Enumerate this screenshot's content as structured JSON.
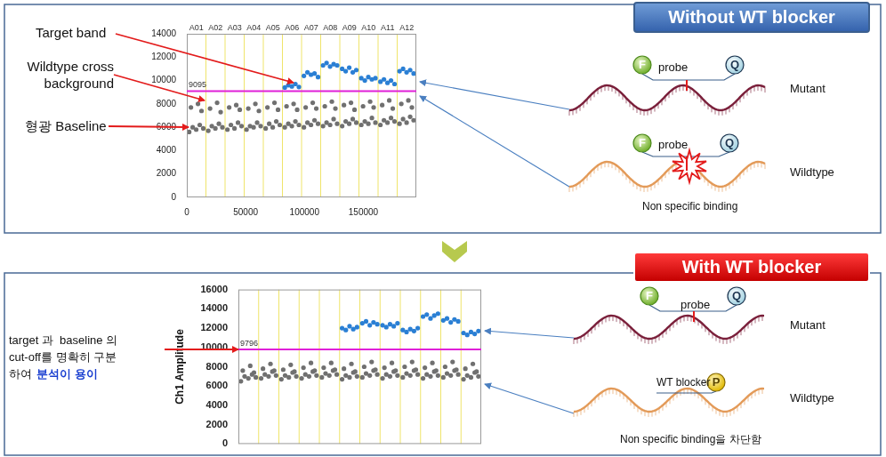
{
  "chart_data": [
    {
      "type": "scatter",
      "xlim": [
        0,
        195000
      ],
      "xticks": [
        0,
        50000,
        100000,
        150000
      ],
      "ylim": [
        0,
        14000
      ],
      "yticks": [
        0,
        2000,
        4000,
        6000,
        8000,
        10000,
        12000,
        14000
      ],
      "threshold": 9095,
      "well_labels": [
        "A01",
        "A02",
        "A03",
        "A04",
        "A05",
        "A06",
        "A07",
        "A08",
        "A09",
        "A10",
        "A11",
        "A12"
      ],
      "well_boundaries": [
        0,
        16250,
        32500,
        48750,
        65000,
        81250,
        97500,
        113750,
        130000,
        146250,
        162500,
        178750,
        195000
      ],
      "series": [
        {
          "color": "#707070",
          "x": [
            2000,
            5000,
            8000,
            11000,
            14000,
            3500,
            9500,
            12500,
            18250,
            21250,
            24250,
            27250,
            30250,
            19750,
            25750,
            28750,
            34500,
            37500,
            40500,
            43500,
            46500,
            36000,
            42000,
            45000,
            50750,
            53750,
            56750,
            59750,
            62750,
            52250,
            58250,
            61250,
            67000,
            70000,
            73000,
            76000,
            79000,
            68500,
            74500,
            77500,
            83250,
            86250,
            89250,
            92250,
            95250,
            84750,
            90750,
            93750,
            99500,
            102500,
            105500,
            108500,
            111500,
            101000,
            107000,
            110000,
            115750,
            118750,
            121750,
            124750,
            127750,
            117250,
            123250,
            126250,
            132000,
            135000,
            138000,
            141000,
            144000,
            133500,
            139500,
            142500,
            148250,
            151250,
            154250,
            157250,
            160250,
            149750,
            155750,
            158750,
            164500,
            167500,
            170500,
            173500,
            176500,
            166000,
            172000,
            175000,
            180750,
            183750,
            186750,
            189750,
            192750,
            182250,
            188250,
            191250
          ],
          "values": [
            5600,
            6000,
            5800,
            6200,
            5900,
            7700,
            8000,
            7400,
            5700,
            6100,
            5900,
            6300,
            6000,
            7600,
            8100,
            7300,
            5800,
            6200,
            5900,
            6400,
            6100,
            7700,
            7900,
            7500,
            5800,
            6100,
            6000,
            6400,
            6100,
            7600,
            8000,
            7400,
            5900,
            6300,
            6000,
            6500,
            6200,
            7700,
            8100,
            7500,
            6000,
            6300,
            6100,
            6500,
            6200,
            7800,
            8000,
            7500,
            6000,
            6400,
            6200,
            6600,
            6300,
            7700,
            8100,
            7600,
            6100,
            6400,
            6200,
            6700,
            6300,
            7800,
            8200,
            7600,
            6100,
            6500,
            6300,
            6700,
            6400,
            7900,
            8100,
            7500,
            6200,
            6500,
            6300,
            6800,
            6400,
            7800,
            8200,
            7700,
            6200,
            6600,
            6400,
            6800,
            6500,
            7900,
            8300,
            7600,
            6300,
            6700,
            6400,
            6900,
            6600,
            8000,
            8300,
            7700
          ]
        },
        {
          "color": "#2a7fd4",
          "x": [
            83250,
            86250,
            89250,
            92250,
            95250,
            99500,
            102500,
            105500,
            108500,
            111500,
            115750,
            118750,
            121750,
            124750,
            127750,
            132000,
            135000,
            138000,
            141000,
            144000,
            148250,
            151250,
            154250,
            157250,
            160250,
            164500,
            167500,
            170500,
            173500,
            176500,
            180750,
            183750,
            186750,
            189750,
            192750
          ],
          "values": [
            9400,
            9600,
            9500,
            9700,
            9450,
            10400,
            10700,
            10500,
            10600,
            10300,
            11300,
            11500,
            11200,
            11400,
            11300,
            11000,
            10800,
            11100,
            10700,
            10900,
            10200,
            10000,
            10300,
            10100,
            10200,
            9900,
            10100,
            9800,
            10000,
            9700,
            10800,
            11000,
            10700,
            10900,
            10600
          ]
        }
      ]
    },
    {
      "type": "scatter",
      "ylabel": "Ch1 Amplitude",
      "tick_labels": "y",
      "xlim": [
        0,
        195000
      ],
      "ylim": [
        0,
        16000
      ],
      "yticks": [
        0,
        2000,
        4000,
        6000,
        8000,
        10000,
        12000,
        14000,
        16000
      ],
      "threshold": 9796,
      "well_boundaries": [
        0,
        16250,
        32500,
        48750,
        65000,
        81250,
        97500,
        113750,
        130000,
        146250,
        162500,
        178750,
        195000
      ],
      "series": [
        {
          "color": "#707070",
          "x": [
            2000,
            5000,
            8000,
            11000,
            14000,
            3500,
            9500,
            12500,
            18250,
            21250,
            24250,
            27250,
            30250,
            19750,
            25750,
            28750,
            34500,
            37500,
            40500,
            43500,
            46500,
            36000,
            42000,
            45000,
            50750,
            53750,
            56750,
            59750,
            62750,
            52250,
            58250,
            61250,
            67000,
            70000,
            73000,
            76000,
            79000,
            68500,
            74500,
            77500,
            83250,
            86250,
            89250,
            92250,
            95250,
            84750,
            90750,
            93750,
            99500,
            102500,
            105500,
            108500,
            111500,
            101000,
            107000,
            110000,
            115750,
            118750,
            121750,
            124750,
            127750,
            117250,
            123250,
            126250,
            132000,
            135000,
            138000,
            141000,
            144000,
            133500,
            139500,
            142500,
            148250,
            151250,
            154250,
            157250,
            160250,
            149750,
            155750,
            158750,
            164500,
            167500,
            170500,
            173500,
            176500,
            166000,
            172000,
            175000,
            180750,
            183750,
            186750,
            189750,
            192750,
            182250,
            188250,
            191250
          ],
          "values": [
            6500,
            7000,
            6800,
            7200,
            6900,
            7600,
            8100,
            7400,
            6800,
            7200,
            7000,
            7500,
            7100,
            7800,
            8300,
            7600,
            6700,
            7100,
            6900,
            7400,
            7000,
            7700,
            8200,
            7500,
            6800,
            7200,
            7000,
            7500,
            7100,
            7900,
            8400,
            7600,
            6900,
            7300,
            7100,
            7600,
            7200,
            7900,
            8400,
            7700,
            6700,
            7100,
            6900,
            7400,
            7000,
            7800,
            8300,
            7500,
            6900,
            7300,
            7100,
            7600,
            7200,
            8000,
            8500,
            7700,
            6800,
            7200,
            7000,
            7500,
            7100,
            7900,
            8400,
            7600,
            6900,
            7300,
            7100,
            7600,
            7200,
            8000,
            8500,
            7700,
            6800,
            7200,
            7000,
            7500,
            7100,
            7900,
            8400,
            7600,
            6900,
            7300,
            7100,
            7600,
            7200,
            8000,
            8500,
            7700,
            6700,
            7100,
            6900,
            7400,
            7000,
            7800,
            8300,
            7500
          ]
        },
        {
          "color": "#2a7fd4",
          "x": [
            83250,
            86250,
            89250,
            92250,
            95250,
            99500,
            102500,
            105500,
            108500,
            111500,
            115750,
            118750,
            121750,
            124750,
            127750,
            132000,
            135000,
            138000,
            141000,
            144000,
            148250,
            151250,
            154250,
            157250,
            160250,
            164500,
            167500,
            170500,
            173500,
            176500,
            180750,
            183750,
            186750,
            189750,
            192750
          ],
          "values": [
            12000,
            11800,
            12200,
            11900,
            12100,
            12500,
            12700,
            12300,
            12600,
            12400,
            12300,
            12100,
            12400,
            12200,
            12500,
            11800,
            11600,
            11900,
            11700,
            12000,
            13200,
            13400,
            13000,
            13300,
            13500,
            12800,
            13000,
            12600,
            12900,
            12700,
            11500,
            11300,
            11600,
            11400,
            11700
          ]
        }
      ]
    }
  ],
  "figure": {
    "panels": [
      {
        "header": "Without WT blocker",
        "notes": [
          "Target band",
          "Wildtype cross\nbackground",
          "형광 Baseline"
        ],
        "mutant": {
          "label": "Mutant",
          "probe": "probe",
          "fluor": "F",
          "quencher": "Q"
        },
        "wildtype": {
          "label": "Wildtype",
          "probe": "probe",
          "fluor": "F",
          "quencher": "Q",
          "caption": "Non specific binding"
        }
      },
      {
        "header": "With WT blocker",
        "note_lines": [
          "target 과  baseline 의",
          "cut-off를 명확히 구분",
          "하여"
        ],
        "note_emphasis": "분석이 용이",
        "mutant": {
          "label": "Mutant",
          "probe": "probe",
          "fluor": "F",
          "quencher": "Q"
        },
        "wildtype": {
          "label": "Wildtype",
          "blocker": "WT blocker",
          "blocker_mark": "P",
          "caption": "Non specific binding을 차단함"
        }
      }
    ]
  }
}
